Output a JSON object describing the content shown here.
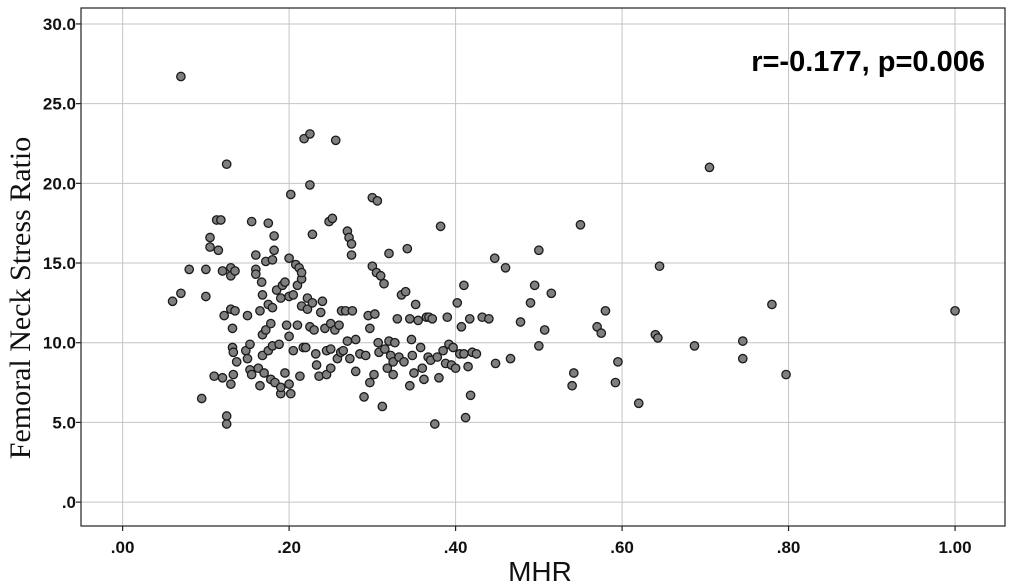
{
  "chart_data": {
    "type": "scatter",
    "xlabel": "MHR",
    "ylabel": "Femoral Neck Stress Ratio",
    "xlim": [
      -0.05,
      1.06
    ],
    "ylim": [
      -1.5,
      31.0
    ],
    "xticks": [
      0.0,
      0.2,
      0.4,
      0.6,
      0.8,
      1.0
    ],
    "xtick_labels": [
      ".00",
      ".20",
      ".40",
      ".60",
      ".80",
      "1.00"
    ],
    "yticks": [
      0,
      5,
      10,
      15,
      20,
      25,
      30
    ],
    "ytick_labels": [
      ".0",
      "5.0",
      "10.0",
      "15.0",
      "20.0",
      "25.0",
      "30.0"
    ],
    "grid": true,
    "annotation": "r=-0.177, p=0.006",
    "marker_color": "#7f7f7f",
    "points": [
      [
        0.07,
        26.7
      ],
      [
        0.06,
        12.6
      ],
      [
        0.07,
        13.1
      ],
      [
        0.08,
        14.6
      ],
      [
        0.095,
        6.5
      ],
      [
        0.1,
        12.9
      ],
      [
        0.1,
        14.6
      ],
      [
        0.105,
        16.6
      ],
      [
        0.105,
        16.0
      ],
      [
        0.11,
        7.9
      ],
      [
        0.113,
        17.7
      ],
      [
        0.115,
        15.8
      ],
      [
        0.118,
        17.7
      ],
      [
        0.12,
        14.5
      ],
      [
        0.122,
        11.7
      ],
      [
        0.12,
        7.8
      ],
      [
        0.125,
        21.2
      ],
      [
        0.125,
        5.4
      ],
      [
        0.125,
        4.9
      ],
      [
        0.13,
        12.1
      ],
      [
        0.13,
        14.2
      ],
      [
        0.13,
        14.7
      ],
      [
        0.132,
        10.9
      ],
      [
        0.132,
        9.7
      ],
      [
        0.133,
        9.4
      ],
      [
        0.133,
        8.0
      ],
      [
        0.13,
        7.4
      ],
      [
        0.135,
        14.5
      ],
      [
        0.135,
        12.0
      ],
      [
        0.137,
        8.8
      ],
      [
        0.148,
        9.5
      ],
      [
        0.15,
        11.7
      ],
      [
        0.15,
        9.0
      ],
      [
        0.153,
        8.3
      ],
      [
        0.153,
        9.9
      ],
      [
        0.155,
        17.6
      ],
      [
        0.155,
        8.0
      ],
      [
        0.16,
        15.5
      ],
      [
        0.16,
        14.6
      ],
      [
        0.16,
        14.3
      ],
      [
        0.163,
        8.4
      ],
      [
        0.165,
        12.0
      ],
      [
        0.165,
        7.3
      ],
      [
        0.167,
        13.8
      ],
      [
        0.168,
        10.5
      ],
      [
        0.168,
        9.2
      ],
      [
        0.168,
        13.0
      ],
      [
        0.17,
        8.1
      ],
      [
        0.172,
        15.1
      ],
      [
        0.172,
        10.8
      ],
      [
        0.175,
        17.5
      ],
      [
        0.175,
        9.5
      ],
      [
        0.175,
        12.4
      ],
      [
        0.178,
        11.2
      ],
      [
        0.178,
        7.7
      ],
      [
        0.18,
        12.2
      ],
      [
        0.18,
        9.8
      ],
      [
        0.18,
        15.2
      ],
      [
        0.182,
        16.7
      ],
      [
        0.182,
        15.8
      ],
      [
        0.183,
        7.5
      ],
      [
        0.185,
        13.3
      ],
      [
        0.188,
        9.9
      ],
      [
        0.19,
        12.8
      ],
      [
        0.19,
        6.8
      ],
      [
        0.19,
        7.2
      ],
      [
        0.192,
        13.6
      ],
      [
        0.195,
        8.1
      ],
      [
        0.195,
        13.8
      ],
      [
        0.197,
        11.1
      ],
      [
        0.2,
        15.3
      ],
      [
        0.2,
        12.9
      ],
      [
        0.2,
        10.4
      ],
      [
        0.2,
        7.4
      ],
      [
        0.202,
        19.3
      ],
      [
        0.202,
        6.8
      ],
      [
        0.205,
        9.5
      ],
      [
        0.205,
        13.0
      ],
      [
        0.208,
        14.9
      ],
      [
        0.21,
        11.1
      ],
      [
        0.21,
        13.6
      ],
      [
        0.212,
        14.7
      ],
      [
        0.213,
        7.9
      ],
      [
        0.215,
        12.3
      ],
      [
        0.215,
        14.0
      ],
      [
        0.215,
        14.4
      ],
      [
        0.217,
        9.7
      ],
      [
        0.218,
        22.8
      ],
      [
        0.22,
        9.7
      ],
      [
        0.222,
        12.8
      ],
      [
        0.222,
        12.1
      ],
      [
        0.225,
        23.1
      ],
      [
        0.225,
        19.9
      ],
      [
        0.225,
        11.0
      ],
      [
        0.228,
        12.5
      ],
      [
        0.228,
        16.8
      ],
      [
        0.23,
        10.8
      ],
      [
        0.232,
        9.3
      ],
      [
        0.233,
        8.6
      ],
      [
        0.236,
        7.9
      ],
      [
        0.238,
        11.9
      ],
      [
        0.24,
        12.6
      ],
      [
        0.243,
        10.9
      ],
      [
        0.245,
        9.5
      ],
      [
        0.245,
        8.0
      ],
      [
        0.248,
        17.6
      ],
      [
        0.25,
        11.2
      ],
      [
        0.25,
        9.6
      ],
      [
        0.25,
        8.4
      ],
      [
        0.252,
        17.8
      ],
      [
        0.255,
        10.8
      ],
      [
        0.256,
        22.7
      ],
      [
        0.258,
        9.0
      ],
      [
        0.26,
        11.1
      ],
      [
        0.262,
        9.4
      ],
      [
        0.263,
        12.0
      ],
      [
        0.265,
        9.5
      ],
      [
        0.268,
        12.0
      ],
      [
        0.27,
        10.1
      ],
      [
        0.27,
        17.0
      ],
      [
        0.272,
        16.6
      ],
      [
        0.273,
        9.0
      ],
      [
        0.275,
        16.2
      ],
      [
        0.275,
        15.5
      ],
      [
        0.276,
        12.0
      ],
      [
        0.28,
        10.2
      ],
      [
        0.28,
        8.2
      ],
      [
        0.285,
        9.3
      ],
      [
        0.29,
        6.6
      ],
      [
        0.292,
        9.2
      ],
      [
        0.295,
        11.7
      ],
      [
        0.297,
        10.9
      ],
      [
        0.297,
        7.5
      ],
      [
        0.3,
        14.8
      ],
      [
        0.3,
        19.1
      ],
      [
        0.302,
        8.0
      ],
      [
        0.303,
        11.8
      ],
      [
        0.305,
        14.4
      ],
      [
        0.306,
        18.9
      ],
      [
        0.307,
        10.0
      ],
      [
        0.308,
        9.4
      ],
      [
        0.31,
        14.2
      ],
      [
        0.312,
        6.0
      ],
      [
        0.314,
        13.7
      ],
      [
        0.315,
        9.6
      ],
      [
        0.318,
        8.4
      ],
      [
        0.32,
        10.1
      ],
      [
        0.32,
        15.6
      ],
      [
        0.322,
        9.2
      ],
      [
        0.325,
        8.0
      ],
      [
        0.325,
        8.8
      ],
      [
        0.327,
        10.0
      ],
      [
        0.33,
        11.5
      ],
      [
        0.332,
        9.1
      ],
      [
        0.335,
        13.0
      ],
      [
        0.338,
        8.8
      ],
      [
        0.34,
        13.2
      ],
      [
        0.342,
        15.9
      ],
      [
        0.345,
        7.3
      ],
      [
        0.345,
        11.5
      ],
      [
        0.347,
        10.2
      ],
      [
        0.348,
        9.2
      ],
      [
        0.35,
        8.1
      ],
      [
        0.352,
        12.4
      ],
      [
        0.355,
        11.4
      ],
      [
        0.358,
        9.7
      ],
      [
        0.36,
        8.4
      ],
      [
        0.362,
        7.7
      ],
      [
        0.365,
        11.6
      ],
      [
        0.367,
        9.1
      ],
      [
        0.368,
        11.6
      ],
      [
        0.37,
        8.9
      ],
      [
        0.372,
        11.5
      ],
      [
        0.375,
        4.9
      ],
      [
        0.378,
        9.1
      ],
      [
        0.38,
        7.8
      ],
      [
        0.382,
        17.3
      ],
      [
        0.385,
        9.5
      ],
      [
        0.388,
        8.7
      ],
      [
        0.39,
        11.6
      ],
      [
        0.392,
        9.9
      ],
      [
        0.395,
        8.6
      ],
      [
        0.397,
        9.7
      ],
      [
        0.4,
        8.4
      ],
      [
        0.402,
        12.5
      ],
      [
        0.405,
        9.3
      ],
      [
        0.407,
        11.0
      ],
      [
        0.41,
        13.6
      ],
      [
        0.41,
        9.3
      ],
      [
        0.412,
        5.3
      ],
      [
        0.415,
        8.5
      ],
      [
        0.417,
        11.5
      ],
      [
        0.418,
        6.7
      ],
      [
        0.42,
        9.4
      ],
      [
        0.425,
        9.3
      ],
      [
        0.432,
        11.6
      ],
      [
        0.44,
        11.5
      ],
      [
        0.447,
        15.3
      ],
      [
        0.448,
        8.7
      ],
      [
        0.46,
        14.7
      ],
      [
        0.466,
        9.0
      ],
      [
        0.478,
        11.3
      ],
      [
        0.49,
        12.5
      ],
      [
        0.495,
        13.6
      ],
      [
        0.5,
        15.8
      ],
      [
        0.5,
        9.8
      ],
      [
        0.507,
        10.8
      ],
      [
        0.515,
        13.1
      ],
      [
        0.54,
        7.3
      ],
      [
        0.542,
        8.1
      ],
      [
        0.55,
        17.4
      ],
      [
        0.57,
        11.0
      ],
      [
        0.575,
        10.6
      ],
      [
        0.58,
        12.0
      ],
      [
        0.592,
        7.5
      ],
      [
        0.595,
        8.8
      ],
      [
        0.62,
        6.2
      ],
      [
        0.64,
        10.5
      ],
      [
        0.643,
        10.3
      ],
      [
        0.645,
        14.8
      ],
      [
        0.687,
        9.8
      ],
      [
        0.705,
        21.0
      ],
      [
        0.745,
        10.1
      ],
      [
        0.745,
        9.0
      ],
      [
        0.78,
        12.4
      ],
      [
        0.797,
        8.0
      ],
      [
        1.0,
        12.0
      ]
    ]
  }
}
